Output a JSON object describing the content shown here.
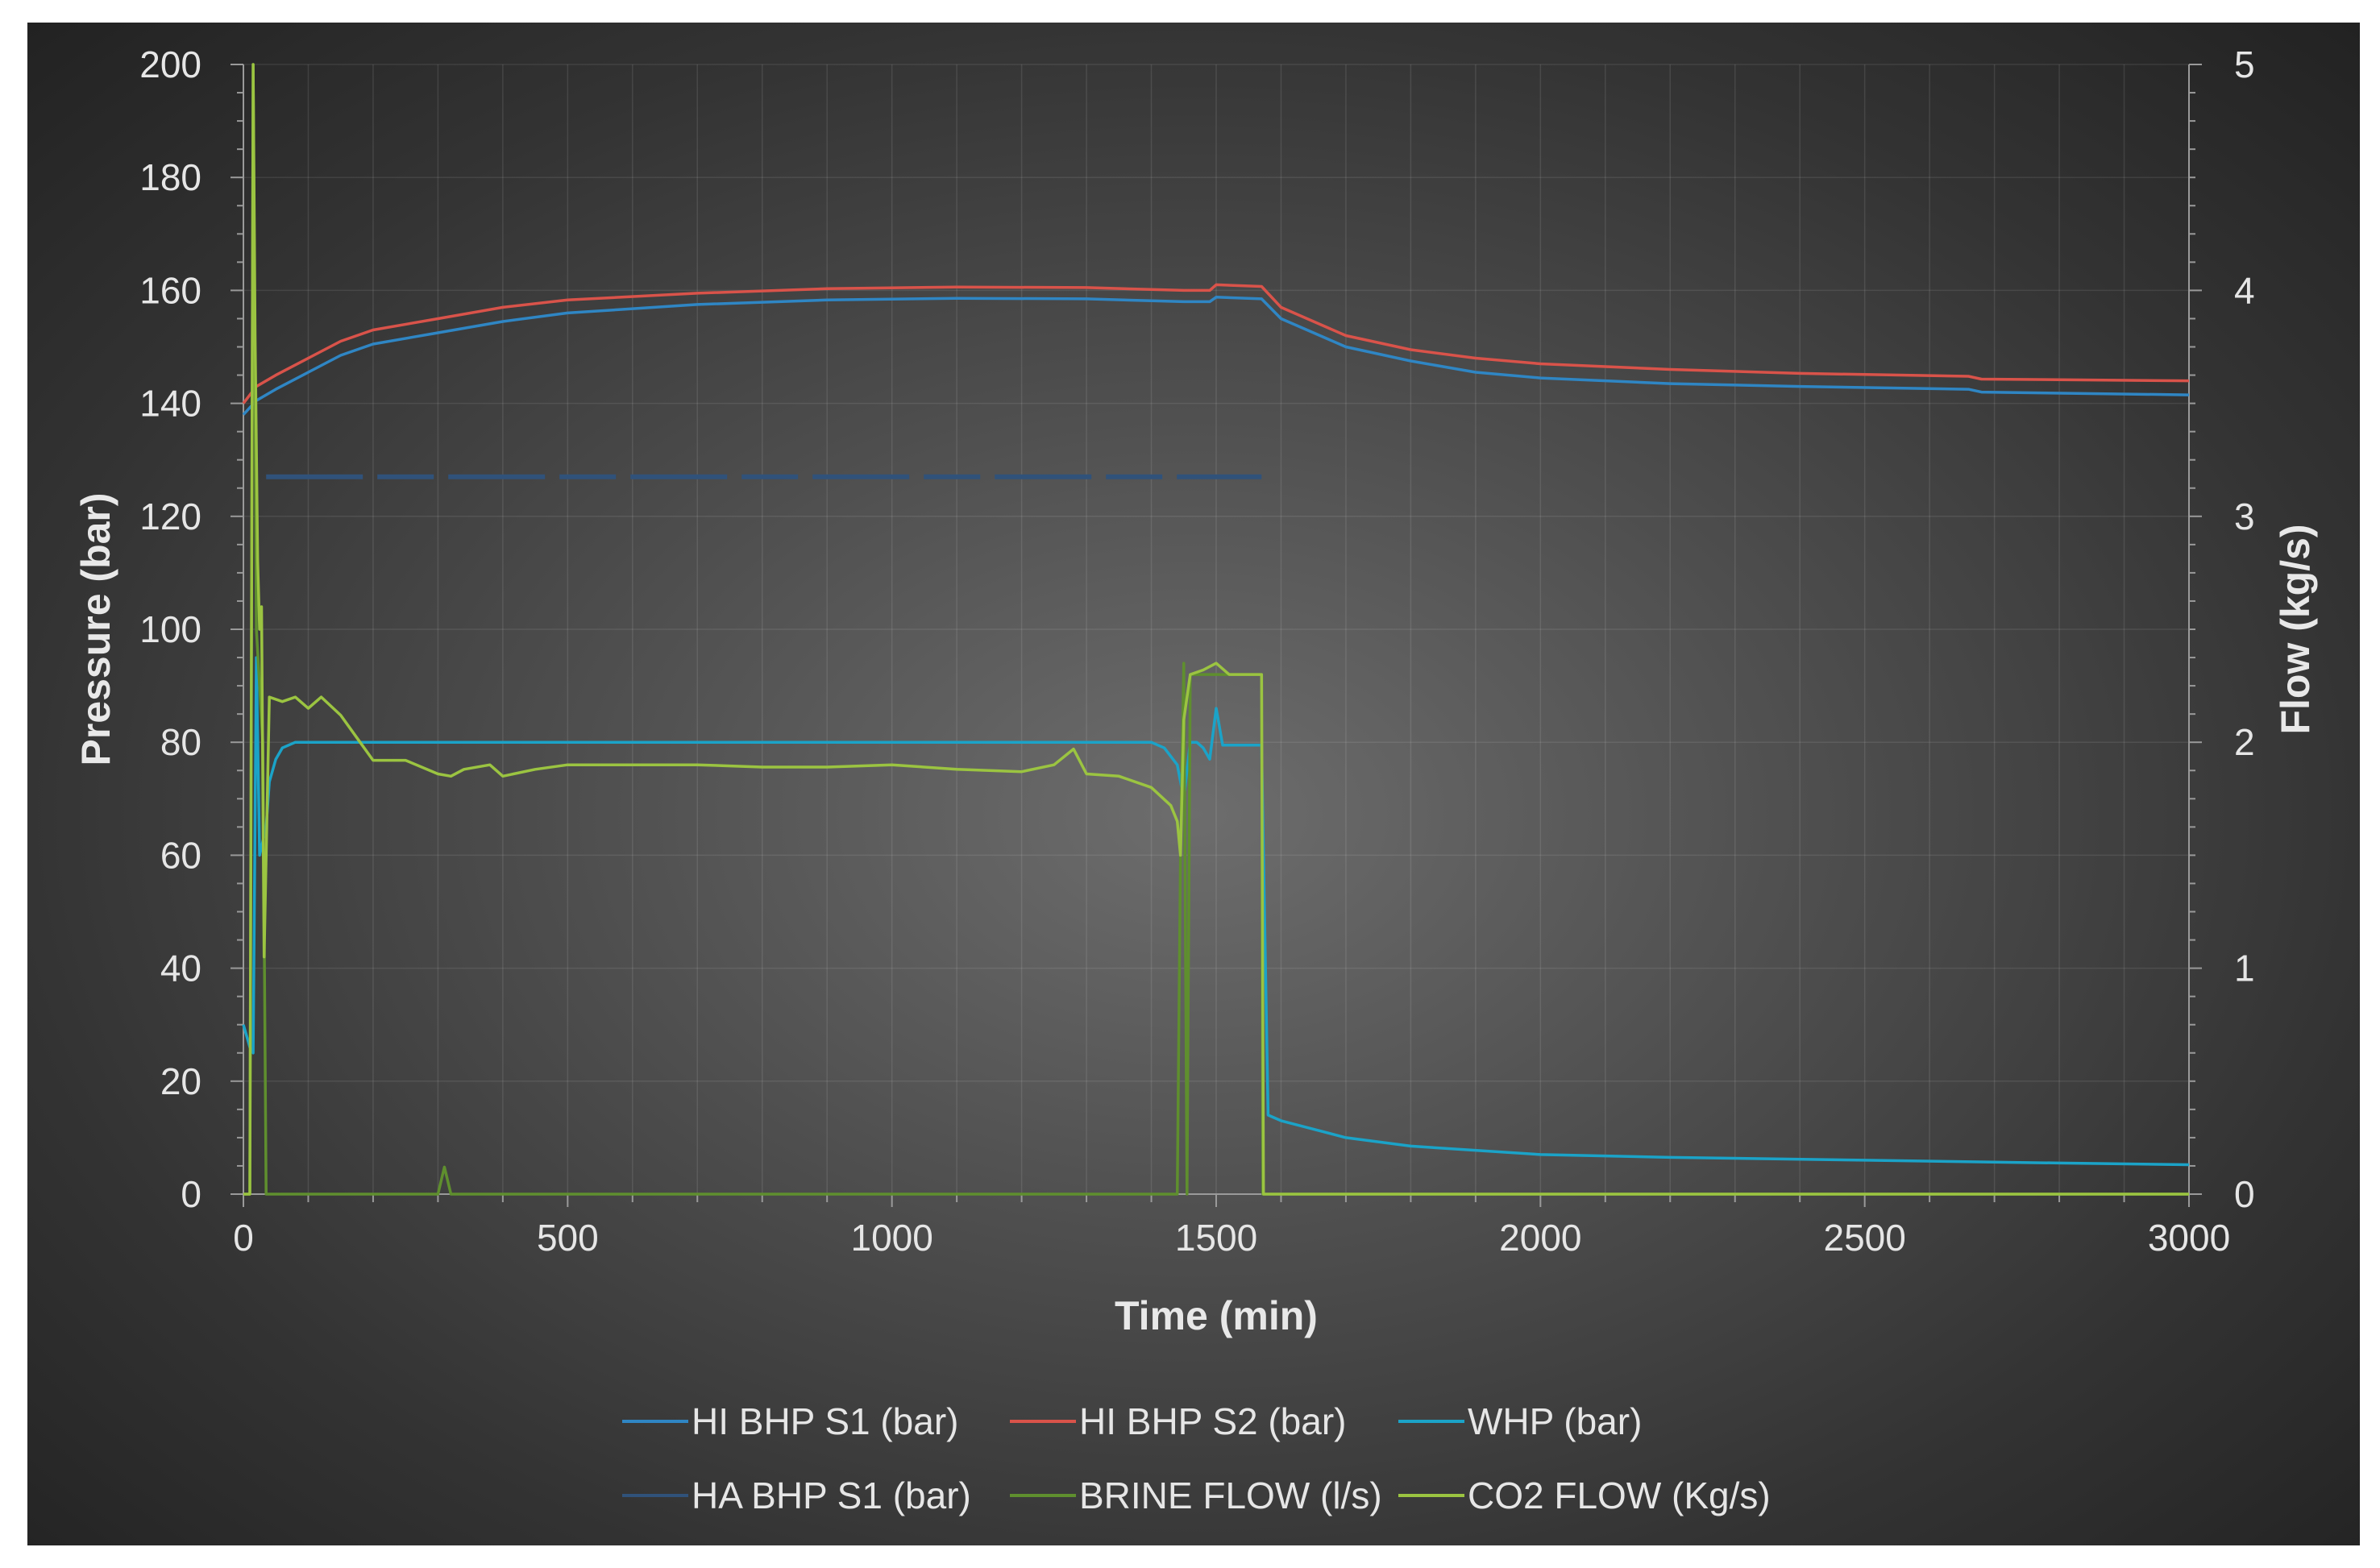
{
  "chart_data": {
    "type": "line",
    "xlabel": "Time (min)",
    "ylabel": "Pressure (bar)",
    "y2label": "Flow (kg/s)",
    "xlim": [
      0,
      3000
    ],
    "ylim": [
      0,
      200
    ],
    "y2lim": [
      0,
      5
    ],
    "x_ticks": [
      "0",
      "500",
      "1000",
      "1500",
      "2000",
      "2500",
      "3000"
    ],
    "y_ticks": [
      "0",
      "20",
      "40",
      "60",
      "80",
      "100",
      "120",
      "140",
      "160",
      "180",
      "200"
    ],
    "y2_ticks": [
      "0",
      "1",
      "2",
      "3",
      "4",
      "5"
    ],
    "grid": true,
    "legend_position": "bottom",
    "series": [
      {
        "name": "HI BHP S1 (bar)",
        "axis": "left",
        "color": "#2f86c4",
        "x": [
          0,
          20,
          50,
          100,
          150,
          200,
          300,
          400,
          500,
          700,
          900,
          1100,
          1300,
          1450,
          1490,
          1500,
          1570,
          1600,
          1700,
          1800,
          1900,
          2000,
          2200,
          2400,
          2660,
          2680,
          3000
        ],
        "y": [
          138,
          140.5,
          142.5,
          145.5,
          148.5,
          150.5,
          152.5,
          154.5,
          156,
          157.5,
          158.3,
          158.6,
          158.5,
          158,
          158,
          158.8,
          158.5,
          155,
          150,
          147.5,
          145.5,
          144.5,
          143.5,
          143,
          142.5,
          142,
          141.5
        ]
      },
      {
        "name": "HI BHP S2 (bar)",
        "axis": "left",
        "color": "#d9534a",
        "x": [
          0,
          20,
          50,
          100,
          150,
          200,
          300,
          400,
          500,
          700,
          900,
          1100,
          1300,
          1450,
          1490,
          1500,
          1570,
          1600,
          1700,
          1800,
          1900,
          2000,
          2200,
          2400,
          2660,
          2680,
          3000
        ],
        "y": [
          140,
          143,
          145,
          148,
          151,
          153,
          155,
          157,
          158.3,
          159.5,
          160.3,
          160.6,
          160.5,
          160,
          160,
          161,
          160.7,
          157,
          152,
          149.5,
          148,
          147,
          146,
          145.3,
          144.8,
          144.3,
          144
        ]
      },
      {
        "name": "WHP (bar)",
        "axis": "left",
        "color": "#1ba3c8",
        "x": [
          0,
          10,
          15,
          20,
          25,
          35,
          40,
          50,
          60,
          80,
          100,
          200,
          400,
          800,
          1200,
          1400,
          1420,
          1440,
          1450,
          1460,
          1470,
          1480,
          1490,
          1500,
          1510,
          1550,
          1570,
          1580,
          1600,
          1700,
          1800,
          2000,
          2200,
          2500,
          2800,
          3000
        ],
        "y": [
          30,
          26,
          25,
          95,
          60,
          65,
          73,
          77,
          79,
          80,
          80,
          80,
          80,
          80,
          80,
          80,
          79,
          76,
          70,
          80,
          80,
          79,
          77,
          86,
          79.5,
          79.5,
          79.5,
          14,
          13,
          10,
          8.5,
          7,
          6.5,
          6,
          5.5,
          5.2
        ]
      },
      {
        "name": "HA BHP S1 (bar)",
        "axis": "left",
        "color": "#30527a",
        "dashed": true,
        "x": [
          35,
          1570
        ],
        "y": [
          127,
          127
        ]
      },
      {
        "name": "BRINE FLOW (l/s)",
        "axis": "right",
        "color": "#5f8f2e",
        "x": [
          0,
          10,
          15,
          20,
          30,
          35,
          40,
          300,
          310,
          320,
          1440,
          1445,
          1450,
          1455,
          1460,
          1570,
          1572,
          3000
        ],
        "y": [
          0,
          0,
          5,
          2.5,
          2,
          0,
          0,
          0,
          0.12,
          0,
          0,
          1.5,
          2.35,
          0,
          2.3,
          2.3,
          0,
          0
        ]
      },
      {
        "name": "CO2 FLOW (Kg/s)",
        "axis": "right",
        "color": "#9bc441",
        "x": [
          0,
          10,
          15,
          18,
          22,
          25,
          28,
          32,
          40,
          60,
          80,
          100,
          120,
          150,
          180,
          200,
          250,
          300,
          320,
          340,
          380,
          400,
          450,
          500,
          600,
          700,
          800,
          900,
          1000,
          1100,
          1200,
          1250,
          1280,
          1300,
          1350,
          1400,
          1430,
          1440,
          1445,
          1450,
          1460,
          1480,
          1500,
          1520,
          1560,
          1570,
          1573,
          3000
        ],
        "y": [
          0,
          0,
          5,
          3.8,
          2.8,
          2.5,
          2.6,
          1.05,
          2.2,
          2.18,
          2.2,
          2.15,
          2.2,
          2.12,
          2.0,
          1.92,
          1.92,
          1.86,
          1.85,
          1.88,
          1.9,
          1.85,
          1.88,
          1.9,
          1.9,
          1.9,
          1.89,
          1.89,
          1.9,
          1.88,
          1.87,
          1.9,
          1.97,
          1.86,
          1.85,
          1.8,
          1.72,
          1.65,
          1.5,
          2.1,
          2.3,
          2.32,
          2.35,
          2.3,
          2.3,
          2.3,
          0,
          0
        ]
      }
    ]
  }
}
